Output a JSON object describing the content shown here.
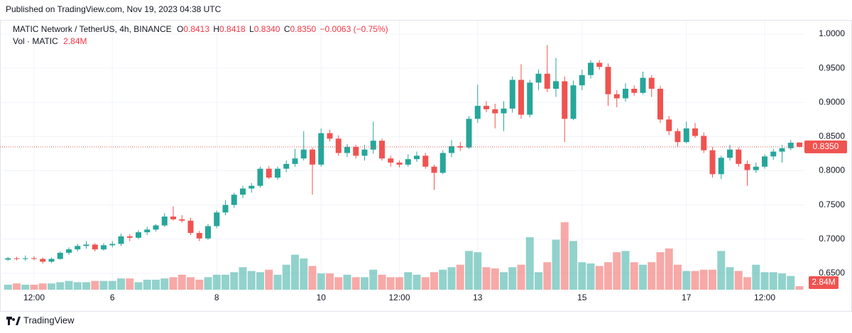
{
  "header": "Published on TradingView.com, Nov 19, 2023 04:38 UTC",
  "footer": "TradingView",
  "chart_data": {
    "type": "candlestick",
    "legend": {
      "symbol": "MATIC Network / TetherUS, 4h, BINANCE",
      "labels": [
        "O",
        "H",
        "L",
        "C"
      ],
      "values": [
        "0.8413",
        "0.8418",
        "0.8340",
        "0.8350"
      ],
      "change": "−0.0063 (−0.75%)",
      "volume_title": "Vol · MATIC"
    },
    "up_color": "#26a69a",
    "down_color": "#ef5350",
    "categories": [
      null,
      null,
      null,
      "12:00",
      null,
      null,
      null,
      null,
      null,
      null,
      null,
      null,
      "6",
      null,
      null,
      null,
      null,
      null,
      null,
      null,
      null,
      null,
      null,
      null,
      "8",
      null,
      null,
      null,
      null,
      null,
      null,
      null,
      null,
      null,
      null,
      null,
      "10",
      null,
      null,
      null,
      null,
      null,
      null,
      null,
      null,
      "12:00",
      null,
      null,
      null,
      null,
      null,
      null,
      null,
      null,
      "13",
      null,
      null,
      null,
      null,
      null,
      null,
      null,
      null,
      null,
      null,
      null,
      "15",
      null,
      null,
      null,
      null,
      null,
      null,
      null,
      null,
      null,
      null,
      null,
      "17",
      null,
      null,
      null,
      null,
      null,
      null,
      null,
      null,
      "12:00",
      null,
      null,
      null,
      null
    ],
    "open": [
      0.67,
      0.672,
      0.671,
      0.672,
      0.671,
      0.667,
      0.671,
      0.68,
      0.685,
      0.69,
      0.692,
      0.685,
      0.691,
      0.693,
      0.704,
      0.702,
      0.71,
      0.714,
      0.72,
      0.733,
      0.729,
      0.727,
      0.709,
      0.701,
      0.719,
      0.739,
      0.75,
      0.765,
      0.774,
      0.778,
      0.803,
      0.79,
      0.803,
      0.81,
      0.818,
      0.831,
      0.809,
      0.855,
      0.847,
      0.826,
      0.835,
      0.822,
      0.831,
      0.844,
      0.818,
      0.812,
      0.809,
      0.817,
      0.822,
      0.806,
      0.797,
      0.826,
      0.836,
      0.834,
      0.876,
      0.895,
      0.89,
      0.884,
      0.891,
      0.933,
      0.882,
      0.929,
      0.942,
      0.92,
      0.931,
      0.876,
      0.925,
      0.94,
      0.958,
      0.952,
      0.912,
      0.906,
      0.92,
      0.914,
      0.936,
      0.92,
      0.875,
      0.858,
      0.842,
      0.862,
      0.851,
      0.83,
      0.795,
      0.819,
      0.831,
      0.81,
      0.801,
      0.806,
      0.821,
      0.828,
      0.833,
      0.8413
    ],
    "high": [
      0.674,
      0.674,
      0.676,
      0.675,
      0.673,
      0.673,
      0.682,
      0.688,
      0.693,
      0.697,
      0.694,
      0.694,
      0.697,
      0.708,
      0.707,
      0.713,
      0.718,
      0.722,
      0.738,
      0.748,
      0.735,
      0.731,
      0.712,
      0.722,
      0.742,
      0.757,
      0.768,
      0.778,
      0.782,
      0.806,
      0.807,
      0.806,
      0.815,
      0.832,
      0.858,
      0.834,
      0.862,
      0.86,
      0.852,
      0.839,
      0.838,
      0.838,
      0.872,
      0.847,
      0.822,
      0.815,
      0.824,
      0.828,
      0.826,
      0.809,
      0.83,
      0.845,
      0.842,
      0.88,
      0.926,
      0.902,
      0.898,
      0.902,
      0.938,
      0.956,
      0.933,
      0.948,
      0.984,
      0.965,
      0.938,
      0.932,
      0.948,
      0.962,
      0.962,
      0.957,
      0.918,
      0.928,
      0.925,
      0.945,
      0.94,
      0.924,
      0.88,
      0.862,
      0.872,
      0.87,
      0.856,
      0.835,
      0.822,
      0.838,
      0.834,
      0.815,
      0.812,
      0.824,
      0.832,
      0.838,
      0.845,
      0.8418
    ],
    "low": [
      0.668,
      0.669,
      0.668,
      0.669,
      0.664,
      0.665,
      0.67,
      0.677,
      0.682,
      0.686,
      0.682,
      0.683,
      0.688,
      0.69,
      0.697,
      0.7,
      0.706,
      0.711,
      0.718,
      0.727,
      0.724,
      0.706,
      0.697,
      0.699,
      0.716,
      0.735,
      0.746,
      0.76,
      0.768,
      0.775,
      0.788,
      0.787,
      0.798,
      0.806,
      0.815,
      0.765,
      0.806,
      0.843,
      0.822,
      0.82,
      0.818,
      0.815,
      0.825,
      0.815,
      0.806,
      0.805,
      0.806,
      0.813,
      0.803,
      0.772,
      0.795,
      0.82,
      0.829,
      0.832,
      0.87,
      0.886,
      0.862,
      0.858,
      0.885,
      0.876,
      0.878,
      0.918,
      0.915,
      0.908,
      0.842,
      0.874,
      0.918,
      0.935,
      0.948,
      0.895,
      0.893,
      0.901,
      0.91,
      0.912,
      0.908,
      0.87,
      0.852,
      0.835,
      0.84,
      0.848,
      0.826,
      0.79,
      0.788,
      0.815,
      0.806,
      0.778,
      0.797,
      0.803,
      0.816,
      0.812,
      0.83,
      0.834
    ],
    "close": [
      0.672,
      0.671,
      0.672,
      0.671,
      0.667,
      0.671,
      0.68,
      0.685,
      0.69,
      0.692,
      0.685,
      0.691,
      0.693,
      0.704,
      0.702,
      0.71,
      0.714,
      0.72,
      0.733,
      0.729,
      0.727,
      0.709,
      0.701,
      0.719,
      0.739,
      0.75,
      0.765,
      0.774,
      0.778,
      0.803,
      0.79,
      0.803,
      0.81,
      0.818,
      0.831,
      0.809,
      0.855,
      0.847,
      0.826,
      0.835,
      0.822,
      0.831,
      0.844,
      0.818,
      0.812,
      0.809,
      0.817,
      0.822,
      0.806,
      0.797,
      0.826,
      0.836,
      0.834,
      0.876,
      0.895,
      0.89,
      0.884,
      0.891,
      0.933,
      0.882,
      0.929,
      0.942,
      0.92,
      0.931,
      0.876,
      0.925,
      0.94,
      0.958,
      0.952,
      0.912,
      0.906,
      0.92,
      0.914,
      0.936,
      0.92,
      0.875,
      0.858,
      0.842,
      0.862,
      0.851,
      0.83,
      0.795,
      0.819,
      0.831,
      0.81,
      0.801,
      0.806,
      0.821,
      0.828,
      0.833,
      0.841,
      0.835
    ],
    "volume": [
      4,
      5,
      4,
      4,
      5,
      5,
      6,
      7,
      6,
      6,
      7,
      7,
      7,
      9,
      9,
      6,
      8,
      8,
      9,
      10,
      12,
      10,
      8,
      10,
      12,
      12,
      14,
      18,
      15,
      14,
      16,
      12,
      20,
      28,
      25,
      19,
      13,
      13,
      10,
      12,
      10,
      10,
      16,
      12,
      10,
      10,
      14,
      12,
      10,
      14,
      16,
      18,
      20,
      31,
      30,
      18,
      17,
      14,
      18,
      20,
      42,
      14,
      22,
      40,
      54,
      39,
      22,
      21,
      19,
      22,
      30,
      31,
      22,
      20,
      22,
      30,
      33,
      20,
      15,
      15,
      16,
      16,
      31,
      18,
      15,
      10,
      20,
      14,
      14,
      13,
      11,
      2.84
    ],
    "volume_value_label": "2.84M",
    "ylim": [
      0.626,
      1.0135
    ],
    "yticks": [
      {
        "value": 0.65,
        "label": "0.6500"
      },
      {
        "value": 0.7,
        "label": "0.7000"
      },
      {
        "value": 0.75,
        "label": "0.7500"
      },
      {
        "value": 0.8,
        "label": "0.8000"
      },
      {
        "value": 0.85,
        "label": "0.8500"
      },
      {
        "value": 0.9,
        "label": "0.9000"
      },
      {
        "value": 0.95,
        "label": "0.9500"
      },
      {
        "value": 1.0,
        "label": "1.0000"
      }
    ],
    "y2lim": [
      0,
      212
    ],
    "grid": true
  }
}
